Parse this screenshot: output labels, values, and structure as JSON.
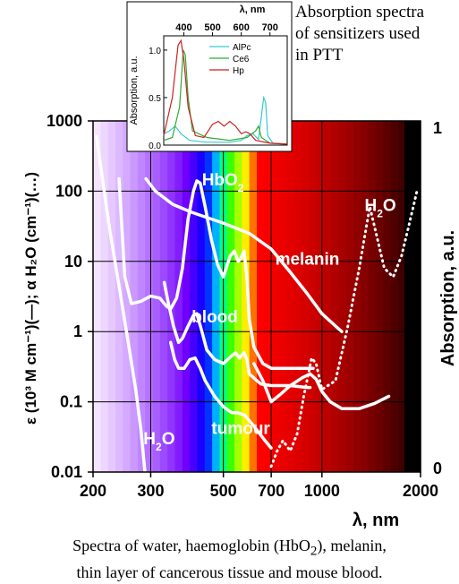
{
  "inset_note": [
    "Absorption spectra",
    "of sensitizers used",
    "in PTT"
  ],
  "caption": {
    "line1_pre": "Spectra of water, haemoglobin (HbO",
    "line1_sub": "2",
    "line1_post": "), melanin,",
    "line2": "thin layer of cancerous tissue and mouse blood."
  },
  "colors": {
    "curve": "#ffffff",
    "grid": "#000000",
    "alpc": "#33cccc",
    "ce6": "#33aa33",
    "hp": "#cc2222"
  },
  "chart_data": [
    {
      "type": "line",
      "scale": {
        "x": "log",
        "y_left": "log"
      },
      "xlim": [
        200,
        2000
      ],
      "ylim": [
        0.01,
        1000
      ],
      "xlabel": "λ, nm",
      "ylabel_left": "ε (10³ M cm⁻¹)(—); α H₂O (cm⁻¹)(…)",
      "ylabel_right": "Absorption, a.u.",
      "x_ticks": [
        200,
        300,
        500,
        700,
        1000,
        2000
      ],
      "y_ticks": [
        0.01,
        0.1,
        1,
        10,
        100,
        1000
      ],
      "y_tick_labels": [
        "0.01",
        "0.1",
        "1",
        "10",
        "100",
        "1000"
      ],
      "right_ticks": [
        "1",
        "0"
      ],
      "grid": true,
      "spectrum_background": true,
      "annotations": [
        {
          "label": "HbO",
          "sub": "2",
          "x": 430,
          "y": 120
        },
        {
          "label": "melanin",
          "x": 720,
          "y": 9
        },
        {
          "label": "blood",
          "x": 400,
          "y": 1.35
        },
        {
          "label": "tumour",
          "x": 460,
          "y": 0.035
        },
        {
          "label": "H",
          "sub": "2",
          "post": "O",
          "x": 285,
          "y": 0.025
        },
        {
          "label": "H",
          "sub": "2",
          "post": "O",
          "x": 1350,
          "y": 52
        }
      ],
      "series": [
        {
          "key": "water_uv",
          "style": "solid",
          "points": [
            [
              205,
              600
            ],
            [
              215,
              120
            ],
            [
              225,
              28
            ],
            [
              240,
              4.5
            ],
            [
              255,
              0.8
            ],
            [
              270,
              0.15
            ],
            [
              280,
              0.04
            ],
            [
              288,
              0.01
            ]
          ]
        },
        {
          "key": "hbo2",
          "style": "solid",
          "points": [
            [
              240,
              150
            ],
            [
              250,
              6
            ],
            [
              262,
              2.5
            ],
            [
              280,
              2.7
            ],
            [
              300,
              3.2
            ],
            [
              320,
              3.0
            ],
            [
              335,
              2.3
            ],
            [
              345,
              2.1
            ],
            [
              360,
              3.0
            ],
            [
              375,
              8
            ],
            [
              390,
              40
            ],
            [
              405,
              100
            ],
            [
              415,
              140
            ],
            [
              425,
              130
            ],
            [
              440,
              60
            ],
            [
              460,
              20
            ],
            [
              480,
              9
            ],
            [
              500,
              6
            ],
            [
              525,
              12
            ],
            [
              540,
              14
            ],
            [
              555,
              10
            ],
            [
              565,
              11
            ],
            [
              578,
              14
            ],
            [
              590,
              6
            ],
            [
              600,
              1.5
            ],
            [
              620,
              0.6
            ],
            [
              660,
              0.35
            ],
            [
              700,
              0.3
            ],
            [
              800,
              0.3
            ],
            [
              900,
              0.3
            ],
            [
              940,
              0.3
            ]
          ]
        },
        {
          "key": "melanin",
          "style": "solid",
          "points": [
            [
              290,
              150
            ],
            [
              310,
              100
            ],
            [
              350,
              65
            ],
            [
              400,
              50
            ],
            [
              500,
              35
            ],
            [
              600,
              25
            ],
            [
              700,
              15
            ],
            [
              800,
              7
            ],
            [
              900,
              3.5
            ],
            [
              1000,
              1.8
            ],
            [
              1100,
              1.2
            ],
            [
              1150,
              1
            ]
          ]
        },
        {
          "key": "blood",
          "style": "solid",
          "points": [
            [
              330,
              5
            ],
            [
              340,
              2.5
            ],
            [
              352,
              1.2
            ],
            [
              365,
              0.7
            ],
            [
              375,
              0.8
            ],
            [
              390,
              1.2
            ],
            [
              405,
              1.7
            ],
            [
              415,
              1.8
            ],
            [
              430,
              1.0
            ],
            [
              445,
              0.55
            ],
            [
              470,
              0.4
            ],
            [
              500,
              0.35
            ],
            [
              530,
              0.45
            ],
            [
              545,
              0.5
            ],
            [
              560,
              0.42
            ],
            [
              578,
              0.5
            ],
            [
              590,
              0.4
            ],
            [
              600,
              0.25
            ],
            [
              650,
              0.18
            ],
            [
              700,
              0.17
            ],
            [
              800,
              0.17
            ],
            [
              900,
              0.16
            ],
            [
              920,
              0.16
            ]
          ]
        },
        {
          "key": "blood_ir",
          "style": "solid",
          "points": [
            [
              620,
              0.35
            ],
            [
              660,
              0.2
            ],
            [
              700,
              0.1
            ],
            [
              750,
              0.13
            ],
            [
              800,
              0.17
            ],
            [
              870,
              0.22
            ],
            [
              920,
              0.25
            ],
            [
              960,
              0.21
            ],
            [
              1000,
              0.14
            ],
            [
              1060,
              0.1
            ],
            [
              1150,
              0.08
            ],
            [
              1300,
              0.08
            ],
            [
              1450,
              0.095
            ],
            [
              1600,
              0.12
            ]
          ]
        },
        {
          "key": "tumour",
          "style": "solid",
          "points": [
            [
              345,
              0.7
            ],
            [
              355,
              0.4
            ],
            [
              365,
              0.3
            ],
            [
              380,
              0.3
            ],
            [
              395,
              0.4
            ],
            [
              410,
              0.42
            ],
            [
              425,
              0.3
            ],
            [
              440,
              0.2
            ],
            [
              470,
              0.12
            ],
            [
              500,
              0.085
            ],
            [
              530,
              0.07
            ],
            [
              550,
              0.07
            ],
            [
              580,
              0.065
            ],
            [
              620,
              0.045
            ],
            [
              670,
              0.028
            ],
            [
              700,
              0.022
            ]
          ]
        },
        {
          "key": "water_ir",
          "style": "dotted",
          "points": [
            [
              700,
              0.012
            ],
            [
              730,
              0.02
            ],
            [
              760,
              0.028
            ],
            [
              800,
              0.02
            ],
            [
              840,
              0.035
            ],
            [
              880,
              0.12
            ],
            [
              930,
              0.42
            ],
            [
              960,
              0.35
            ],
            [
              1000,
              0.15
            ],
            [
              1100,
              0.2
            ],
            [
              1200,
              1.2
            ],
            [
              1300,
              8
            ],
            [
              1400,
              60
            ],
            [
              1450,
              30
            ],
            [
              1550,
              8
            ],
            [
              1650,
              6
            ],
            [
              1750,
              12
            ],
            [
              1850,
              35
            ],
            [
              1950,
              100
            ]
          ]
        }
      ]
    },
    {
      "type": "line",
      "scale": {
        "x": "linear",
        "y": "linear"
      },
      "xlabel": "λ, nm",
      "ylabel": "Absorption, a.u.",
      "xlim": [
        330,
        760
      ],
      "ylim": [
        0,
        1.15
      ],
      "x_ticks": [
        400,
        500,
        600,
        700
      ],
      "y_ticks": [
        0,
        0.5,
        1.0
      ],
      "y_tick_labels": [
        "0.0",
        "0.5",
        "1.0"
      ],
      "legend": "top-right",
      "series": [
        {
          "name": "AlPc",
          "color": "#33cccc",
          "points": [
            [
              330,
              0.12
            ],
            [
              350,
              0.15
            ],
            [
              370,
              0.2
            ],
            [
              390,
              0.12
            ],
            [
              420,
              0.05
            ],
            [
              480,
              0.03
            ],
            [
              560,
              0.03
            ],
            [
              600,
              0.05
            ],
            [
              620,
              0.1
            ],
            [
              640,
              0.12
            ],
            [
              660,
              0.06
            ],
            [
              670,
              0.3
            ],
            [
              678,
              0.5
            ],
            [
              685,
              0.45
            ],
            [
              692,
              0.1
            ],
            [
              710,
              0.02
            ],
            [
              760,
              0.01
            ]
          ]
        },
        {
          "name": "Ce6",
          "color": "#33aa33",
          "points": [
            [
              330,
              0.05
            ],
            [
              360,
              0.08
            ],
            [
              385,
              0.4
            ],
            [
              398,
              1.0
            ],
            [
              405,
              0.95
            ],
            [
              415,
              0.5
            ],
            [
              430,
              0.15
            ],
            [
              480,
              0.08
            ],
            [
              560,
              0.05
            ],
            [
              620,
              0.08
            ],
            [
              650,
              0.15
            ],
            [
              660,
              0.2
            ],
            [
              670,
              0.08
            ],
            [
              700,
              0.02
            ],
            [
              760,
              0.01
            ]
          ]
        },
        {
          "name": "Hp",
          "color": "#cc2222",
          "points": [
            [
              330,
              0.1
            ],
            [
              360,
              0.5
            ],
            [
              380,
              1.05
            ],
            [
              390,
              1.1
            ],
            [
              400,
              0.9
            ],
            [
              415,
              0.4
            ],
            [
              440,
              0.1
            ],
            [
              470,
              0.08
            ],
            [
              500,
              0.22
            ],
            [
              520,
              0.25
            ],
            [
              540,
              0.2
            ],
            [
              560,
              0.25
            ],
            [
              580,
              0.2
            ],
            [
              600,
              0.12
            ],
            [
              615,
              0.14
            ],
            [
              630,
              0.12
            ],
            [
              650,
              0.05
            ],
            [
              700,
              0.02
            ],
            [
              760,
              0.01
            ]
          ]
        }
      ]
    }
  ]
}
